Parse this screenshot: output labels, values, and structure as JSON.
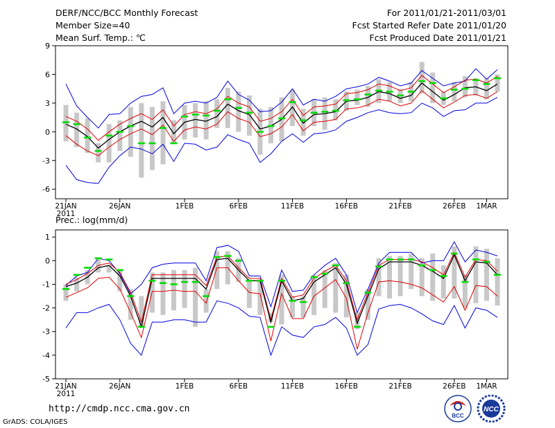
{
  "header": {
    "title": "DERF/NCC/BCC Monthly Forecast",
    "member_size": "Member Size=40",
    "variable1": "Mean Surf. Temp.: ℃",
    "period": "For 2011/01/21-2011/03/01",
    "refer_date": "Fcst Started Refer Date 2011/01/20",
    "produced_date": "Fcst Produced Date 2011/01/21"
  },
  "footer": {
    "url": "http://cmdp.ncc.cma.gov.cn",
    "grads": "GrADS: COLA/IGES",
    "logo_bcc": "BCC",
    "logo_ncc": "NCC"
  },
  "colors": {
    "mean": "#000000",
    "spread_inner": "#e00000",
    "spread_outer": "#0000e0",
    "box": "#c8c8c8",
    "median": "#00dd00"
  },
  "chart_data": [
    {
      "type": "line",
      "title": "Mean Surf. Temp.: ℃",
      "ylim": [
        -7,
        9
      ],
      "yticks": [
        9,
        6,
        3,
        0,
        -3,
        -6
      ],
      "xticks": [
        {
          "day": 0,
          "label": "21JAN"
        },
        {
          "day": 5,
          "label": "26JAN"
        },
        {
          "day": 11,
          "label": "1FEB"
        },
        {
          "day": 16,
          "label": "6FEB"
        },
        {
          "day": 21,
          "label": "11FEB"
        },
        {
          "day": 26,
          "label": "16FEB"
        },
        {
          "day": 31,
          "label": "21FEB"
        },
        {
          "day": 36,
          "label": "26FEB"
        },
        {
          "day": 39,
          "label": "1MAR"
        }
      ],
      "year_label": "2011",
      "series": [
        {
          "name": "ensemble mean",
          "values": [
            0.8,
            0.3,
            -0.5,
            -1.7,
            -0.8,
            0.0,
            0.6,
            1.1,
            0.5,
            1.5,
            -0.2,
            1.0,
            1.3,
            1.1,
            1.6,
            2.9,
            2.2,
            1.8,
            0.3,
            0.6,
            1.3,
            2.6,
            0.9,
            1.8,
            1.9,
            2.1,
            3.2,
            3.3,
            3.6,
            4.2,
            4.0,
            3.5,
            3.8,
            5.1,
            4.2,
            3.3,
            3.9,
            4.6,
            4.7,
            4.3,
            5.0
          ]
        },
        {
          "name": "mean + 1 std",
          "values": [
            1.6,
            1.1,
            0.3,
            -0.9,
            0.0,
            0.8,
            1.4,
            1.9,
            1.3,
            2.3,
            0.6,
            1.8,
            2.1,
            1.9,
            2.4,
            3.7,
            3.0,
            2.6,
            1.1,
            1.4,
            2.1,
            3.4,
            1.7,
            2.6,
            2.7,
            2.9,
            4.0,
            4.1,
            4.4,
            5.0,
            4.8,
            4.3,
            4.6,
            5.9,
            5.0,
            4.1,
            4.7,
            5.4,
            5.5,
            5.1,
            5.8
          ]
        },
        {
          "name": "mean - 1 std",
          "values": [
            -0.4,
            -1.3,
            -2.0,
            -2.5,
            -1.6,
            -0.8,
            -0.2,
            0.3,
            -0.3,
            0.7,
            -1.0,
            0.2,
            0.5,
            0.3,
            0.8,
            2.1,
            1.4,
            1.0,
            -0.5,
            -0.2,
            0.5,
            1.8,
            0.1,
            1.0,
            1.1,
            1.3,
            2.4,
            2.5,
            2.8,
            3.4,
            3.2,
            2.7,
            3.0,
            4.3,
            3.4,
            2.5,
            3.1,
            3.8,
            3.9,
            3.5,
            4.2
          ]
        },
        {
          "name": "maximum",
          "values": [
            5.0,
            2.7,
            1.5,
            0.4,
            1.8,
            1.9,
            3.0,
            3.7,
            3.9,
            4.6,
            1.9,
            3.0,
            3.2,
            3.0,
            3.6,
            5.3,
            3.9,
            3.3,
            2.1,
            2.2,
            3.1,
            4.5,
            2.8,
            3.4,
            3.2,
            3.7,
            4.5,
            4.7,
            5.0,
            5.7,
            5.3,
            4.8,
            5.1,
            6.4,
            5.6,
            4.8,
            5.1,
            5.3,
            6.6,
            5.5,
            6.5
          ]
        },
        {
          "name": "minimum",
          "values": [
            -3.5,
            -5.0,
            -5.3,
            -5.4,
            -3.7,
            -2.5,
            -1.6,
            -1.8,
            -2.3,
            -1.3,
            -3.1,
            -1.2,
            -1.3,
            -1.9,
            -1.6,
            -0.3,
            -0.8,
            -1.2,
            -3.2,
            -2.3,
            -1.0,
            -0.2,
            -1.1,
            -0.2,
            -0.1,
            0.2,
            1.1,
            1.5,
            2.0,
            2.3,
            2.0,
            1.9,
            2.0,
            3.0,
            2.5,
            1.6,
            2.2,
            2.3,
            3.0,
            3.0,
            3.6
          ]
        },
        {
          "name": "box upper",
          "values": [
            2.8,
            2.0,
            1.4,
            -1.2,
            0.8,
            1.2,
            2.6,
            3.0,
            2.6,
            3.2,
            1.2,
            2.8,
            3.0,
            3.2,
            3.4,
            4.6,
            4.2,
            3.8,
            2.4,
            2.6,
            3.6,
            4.4,
            2.4,
            3.4,
            3.6,
            3.4,
            4.2,
            4.4,
            4.8,
            5.5,
            5.2,
            4.5,
            5.2,
            7.3,
            6.2,
            4.2,
            5.2,
            5.8,
            5.6,
            5.6,
            6.0
          ]
        },
        {
          "name": "box lower",
          "values": [
            -1.0,
            -1.6,
            -2.2,
            -3.2,
            -3.2,
            -2.0,
            -2.6,
            -4.8,
            -4.0,
            -3.4,
            -1.2,
            -0.8,
            -0.6,
            -0.8,
            0.4,
            0.4,
            0.0,
            -0.4,
            -2.4,
            -1.2,
            -1.0,
            0.6,
            -0.4,
            0.6,
            0.2,
            1.2,
            2.2,
            2.8,
            2.6,
            3.0,
            3.2,
            3.0,
            3.2,
            4.0,
            3.0,
            2.8,
            3.2,
            3.6,
            3.8,
            3.4,
            4.2
          ]
        },
        {
          "name": "median",
          "values": [
            1.0,
            0.8,
            -0.6,
            -2.0,
            -0.4,
            0.0,
            0.6,
            -1.2,
            -1.2,
            0.4,
            -1.2,
            1.6,
            1.8,
            1.7,
            2.2,
            3.4,
            2.5,
            2.0,
            0.0,
            0.6,
            1.4,
            3.1,
            1.2,
            2.0,
            2.1,
            2.2,
            3.3,
            3.4,
            3.9,
            4.3,
            4.2,
            3.8,
            4.2,
            5.3,
            5.1,
            3.5,
            4.4,
            4.5,
            5.4,
            5.0,
            5.6
          ]
        }
      ]
    },
    {
      "type": "line",
      "title": "Prec.: log(mm/d)",
      "ylim": [
        -5,
        1.3
      ],
      "yticks": [
        1,
        0,
        -1,
        -2,
        -3,
        -4,
        -5
      ],
      "xticks": [
        {
          "day": 0,
          "label": "21JAN"
        },
        {
          "day": 5,
          "label": "26JAN"
        },
        {
          "day": 11,
          "label": "1FEB"
        },
        {
          "day": 16,
          "label": "6FEB"
        },
        {
          "day": 21,
          "label": "11FEB"
        },
        {
          "day": 26,
          "label": "16FEB"
        },
        {
          "day": 31,
          "label": "21FEB"
        },
        {
          "day": 36,
          "label": "26FEB"
        },
        {
          "day": 39,
          "label": "1MAR"
        }
      ],
      "year_label": "2011",
      "series": [
        {
          "name": "ensemble mean",
          "values": [
            -1.1,
            -0.95,
            -0.7,
            -0.3,
            -0.2,
            -0.65,
            -1.5,
            -2.8,
            -0.75,
            -0.75,
            -0.75,
            -0.75,
            -0.75,
            -1.2,
            0.05,
            0.1,
            -0.4,
            -0.85,
            -0.85,
            -2.6,
            -0.85,
            -1.7,
            -1.6,
            -0.9,
            -0.6,
            -0.3,
            -1.0,
            -2.65,
            -1.5,
            -0.35,
            -0.05,
            -0.05,
            -0.05,
            -0.2,
            -0.45,
            -0.75,
            0.25,
            -0.85,
            -0.05,
            -0.1,
            -0.6
          ]
        },
        {
          "name": "mean + 1 std",
          "values": [
            -1.0,
            -0.8,
            -0.55,
            -0.2,
            -0.1,
            -0.5,
            -1.35,
            -2.6,
            -0.6,
            -0.6,
            -0.6,
            -0.6,
            -0.6,
            -1.05,
            0.15,
            0.2,
            -0.3,
            -0.75,
            -0.75,
            -2.5,
            -0.75,
            -1.55,
            -1.45,
            -0.75,
            -0.45,
            -0.2,
            -0.85,
            -2.5,
            -1.35,
            -0.2,
            0.05,
            0.05,
            0.05,
            -0.05,
            -0.3,
            -0.6,
            0.35,
            -0.7,
            0.05,
            0.0,
            -0.45
          ]
        },
        {
          "name": "mean - 1 std",
          "values": [
            -1.55,
            -1.35,
            -1.15,
            -0.75,
            -0.7,
            -1.2,
            -2.2,
            -3.25,
            -1.3,
            -1.3,
            -1.25,
            -1.3,
            -1.3,
            -1.8,
            -0.3,
            -0.3,
            -0.85,
            -1.35,
            -1.4,
            -3.4,
            -1.4,
            -2.45,
            -2.45,
            -1.5,
            -1.15,
            -0.8,
            -1.6,
            -3.75,
            -2.2,
            -0.9,
            -0.85,
            -0.9,
            -1.0,
            -1.15,
            -1.45,
            -1.75,
            -1.1,
            -2.1,
            -1.05,
            -1.1,
            -1.5
          ]
        },
        {
          "name": "maximum",
          "values": [
            -1.05,
            -0.65,
            -0.5,
            0.1,
            0.0,
            -0.55,
            -1.4,
            -1.0,
            -0.3,
            -0.15,
            -0.1,
            -0.1,
            -0.1,
            -0.85,
            0.55,
            0.65,
            0.4,
            -0.65,
            -0.65,
            -1.95,
            -0.4,
            -1.3,
            -1.25,
            -0.6,
            -0.2,
            0.1,
            -0.6,
            -2.2,
            -1.2,
            -0.1,
            0.35,
            0.35,
            0.35,
            -0.1,
            0.0,
            0.0,
            0.8,
            -0.05,
            0.45,
            0.35,
            0.2
          ]
        },
        {
          "name": "minimum",
          "values": [
            -2.85,
            -2.2,
            -2.2,
            -2.0,
            -1.85,
            -2.5,
            -3.5,
            -4.0,
            -2.6,
            -2.6,
            -2.5,
            -2.5,
            -2.6,
            -2.6,
            -1.7,
            -1.8,
            -2.0,
            -2.35,
            -2.4,
            -4.0,
            -2.8,
            -3.15,
            -3.25,
            -2.8,
            -2.7,
            -2.4,
            -2.85,
            -4.0,
            -3.55,
            -2.05,
            -1.9,
            -1.85,
            -2.0,
            -2.25,
            -2.55,
            -2.7,
            -1.9,
            -2.85,
            -2.0,
            -2.1,
            -2.4
          ]
        },
        {
          "name": "box upper",
          "values": [
            -1.0,
            -0.7,
            -0.4,
            0.05,
            -0.2,
            -0.4,
            -1.2,
            -1.5,
            -0.5,
            -0.5,
            -0.4,
            -0.4,
            -0.3,
            -1.2,
            0.4,
            0.4,
            0.1,
            -0.8,
            -0.8,
            -2.2,
            -0.6,
            -1.5,
            -1.5,
            -0.6,
            -0.4,
            -0.1,
            -0.6,
            -2.2,
            -1.2,
            0.1,
            0.2,
            0.2,
            0.3,
            0.1,
            0.3,
            -0.2,
            0.6,
            -0.6,
            0.6,
            0.5,
            0.1
          ]
        },
        {
          "name": "box lower",
          "values": [
            -1.7,
            -1.3,
            -1.0,
            -0.5,
            -0.5,
            -1.3,
            -2.5,
            -2.8,
            -2.2,
            -2.3,
            -2.1,
            -2.0,
            -2.8,
            -2.2,
            -1.2,
            -1.0,
            -0.9,
            -2.0,
            -2.3,
            -2.6,
            -2.7,
            -2.4,
            -2.4,
            -2.3,
            -2.0,
            -2.2,
            -2.4,
            -2.9,
            -2.5,
            -1.5,
            -1.6,
            -1.5,
            -1.2,
            -1.5,
            -1.7,
            -1.6,
            -1.6,
            -2.0,
            -1.8,
            -1.7,
            -1.9
          ]
        },
        {
          "name": "median",
          "values": [
            -1.2,
            -0.6,
            -0.3,
            0.1,
            0.05,
            -0.4,
            -1.5,
            -2.8,
            -0.85,
            -0.95,
            -1.0,
            -0.9,
            -0.9,
            -1.5,
            0.15,
            0.2,
            0.0,
            -0.85,
            -0.85,
            -2.8,
            -0.85,
            -1.7,
            -1.75,
            -0.7,
            -0.55,
            -0.2,
            -0.95,
            -2.8,
            -1.35,
            -0.25,
            0.05,
            0.05,
            0.05,
            -0.2,
            -0.4,
            -0.65,
            0.3,
            -0.9,
            0.05,
            -0.05,
            -0.6
          ]
        }
      ]
    }
  ]
}
